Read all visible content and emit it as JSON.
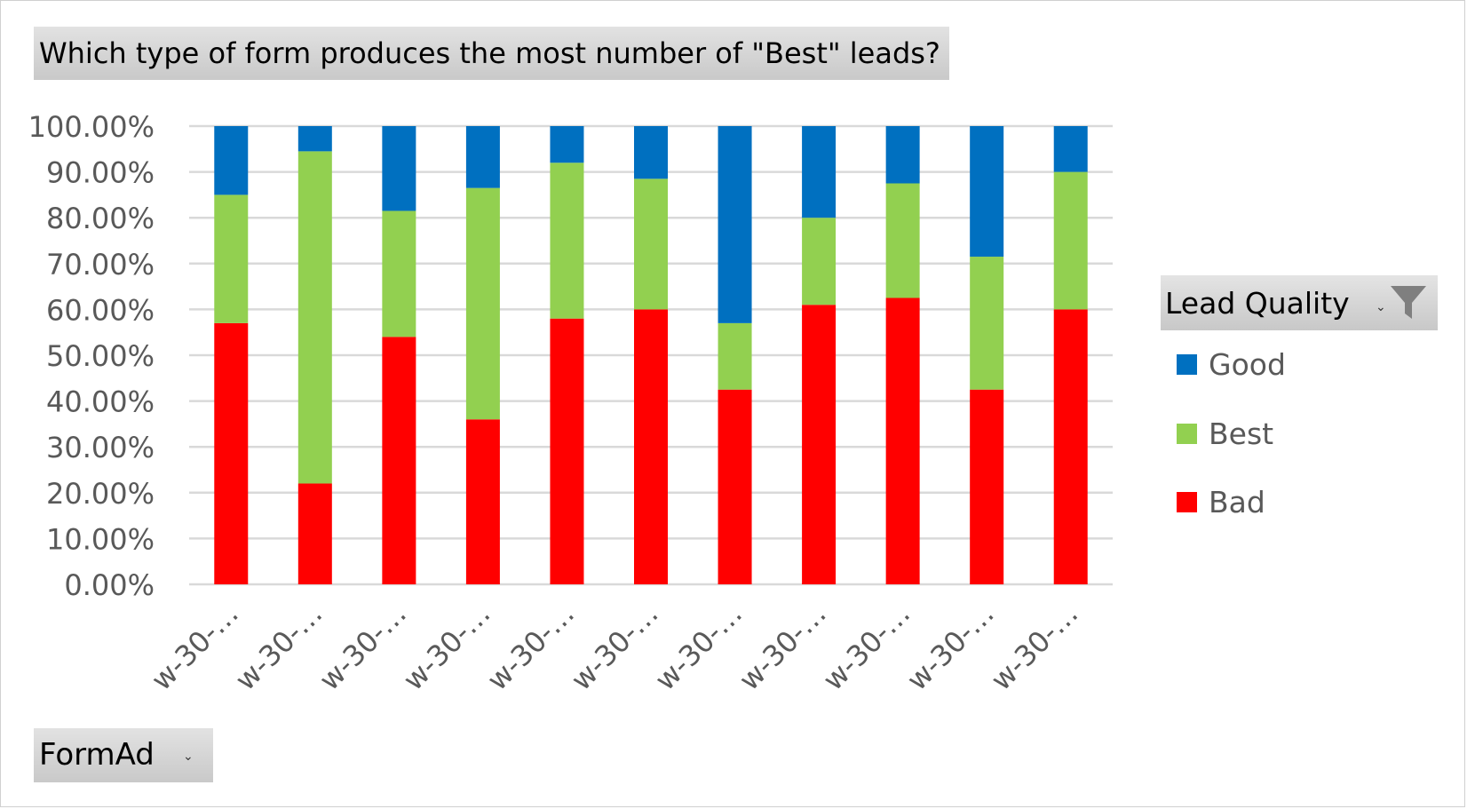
{
  "chart_data": {
    "type": "bar",
    "stacked": true,
    "title": "Which type of form produces the most number of \"Best\" leads?",
    "categories": [
      "w-30-…",
      "w-30-…",
      "w-30-…",
      "w-30-…",
      "w-30-…",
      "w-30-…",
      "w-30-…",
      "w-30-…",
      "w-30-…",
      "w-30-…",
      "w-30-…"
    ],
    "series": [
      {
        "name": "Bad",
        "color": "#ff0000",
        "values": [
          57,
          22,
          54,
          36,
          58,
          60,
          42.5,
          61,
          62.5,
          42.5,
          60
        ]
      },
      {
        "name": "Best",
        "color": "#92d050",
        "values": [
          28,
          72.5,
          27.5,
          50.5,
          34,
          28.5,
          14.5,
          19,
          25,
          29,
          30
        ]
      },
      {
        "name": "Good",
        "color": "#0070c0",
        "values": [
          15,
          5.5,
          18.5,
          13.5,
          8,
          11.5,
          43,
          20,
          12.5,
          28.5,
          10
        ]
      }
    ],
    "yticks": [
      "0.00%",
      "10.00%",
      "20.00%",
      "30.00%",
      "40.00%",
      "50.00%",
      "60.00%",
      "70.00%",
      "80.00%",
      "90.00%",
      "100.00%"
    ],
    "ylim": [
      0,
      100
    ],
    "grid": true,
    "legend_position": "right"
  },
  "legend": {
    "title": "Lead Quality",
    "items": [
      {
        "label": "Good",
        "color": "#0070c0"
      },
      {
        "label": "Best",
        "color": "#92d050"
      },
      {
        "label": "Bad",
        "color": "#ff0000"
      }
    ]
  },
  "filter_button": {
    "label": "FormAd"
  },
  "icons": {
    "legend_filter": "filter-icon",
    "dropdown": "chevron-down-icon"
  }
}
